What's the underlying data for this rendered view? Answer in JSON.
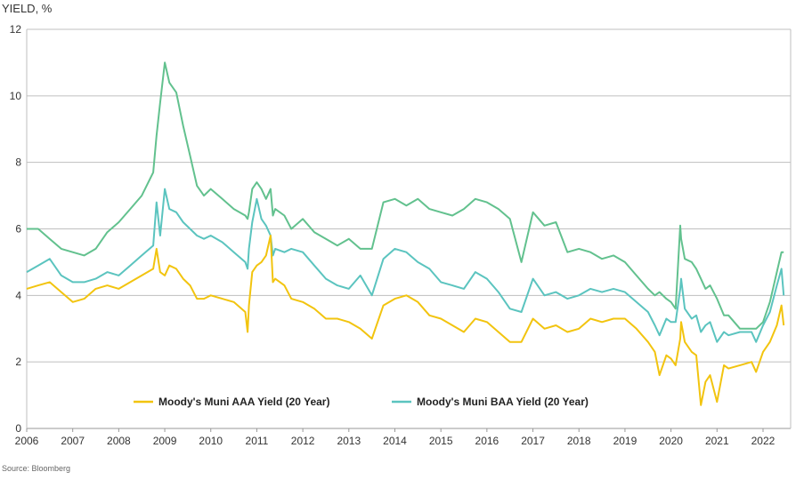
{
  "chart_data": {
    "type": "line",
    "ylabel": "YIELD, %",
    "ylim": [
      0,
      12
    ],
    "yticks": [
      "0",
      "2",
      "4",
      "6",
      "8",
      "10",
      "12"
    ],
    "xlim": [
      2006,
      2022.6
    ],
    "xticks": [
      "2006",
      "2007",
      "2008",
      "2009",
      "2010",
      "2011",
      "2012",
      "2013",
      "2014",
      "2015",
      "2016",
      "2017",
      "2018",
      "2019",
      "2020",
      "2021",
      "2022"
    ],
    "grid": "horizontal",
    "legend_position": "bottom-center",
    "source": "Source: Bloomberg",
    "series": [
      {
        "name": "Moody's Muni AAA Yield (20 Year)",
        "color": "#F2C40F",
        "x": [
          2006.0,
          2006.25,
          2006.5,
          2006.75,
          2007.0,
          2007.25,
          2007.5,
          2007.75,
          2008.0,
          2008.25,
          2008.5,
          2008.75,
          2008.82,
          2008.9,
          2009.0,
          2009.1,
          2009.25,
          2009.4,
          2009.55,
          2009.7,
          2009.85,
          2010.0,
          2010.25,
          2010.5,
          2010.75,
          2010.8,
          2010.83,
          2010.9,
          2011.0,
          2011.1,
          2011.2,
          2011.3,
          2011.35,
          2011.4,
          2011.6,
          2011.75,
          2012.0,
          2012.25,
          2012.5,
          2012.75,
          2013.0,
          2013.25,
          2013.5,
          2013.75,
          2014.0,
          2014.25,
          2014.5,
          2014.75,
          2015.0,
          2015.25,
          2015.5,
          2015.75,
          2016.0,
          2016.25,
          2016.5,
          2016.75,
          2017.0,
          2017.25,
          2017.5,
          2017.75,
          2018.0,
          2018.25,
          2018.5,
          2018.75,
          2019.0,
          2019.25,
          2019.5,
          2019.65,
          2019.75,
          2019.9,
          2020.0,
          2020.1,
          2020.2,
          2020.22,
          2020.3,
          2020.45,
          2020.55,
          2020.65,
          2020.75,
          2020.85,
          2021.0,
          2021.15,
          2021.25,
          2021.5,
          2021.75,
          2021.85,
          2022.0,
          2022.15,
          2022.3,
          2022.4,
          2022.45
        ],
        "y": [
          4.2,
          4.3,
          4.4,
          4.1,
          3.8,
          3.9,
          4.2,
          4.3,
          4.2,
          4.4,
          4.6,
          4.8,
          5.4,
          4.7,
          4.6,
          4.9,
          4.8,
          4.5,
          4.3,
          3.9,
          3.9,
          4.0,
          3.9,
          3.8,
          3.5,
          2.9,
          3.7,
          4.7,
          4.9,
          5.0,
          5.2,
          5.8,
          4.4,
          4.5,
          4.3,
          3.9,
          3.8,
          3.6,
          3.3,
          3.3,
          3.2,
          3.0,
          2.7,
          3.7,
          3.9,
          4.0,
          3.8,
          3.4,
          3.3,
          3.1,
          2.9,
          3.3,
          3.2,
          2.9,
          2.6,
          2.6,
          3.3,
          3.0,
          3.1,
          2.9,
          3.0,
          3.3,
          3.2,
          3.3,
          3.3,
          3.0,
          2.6,
          2.3,
          1.6,
          2.2,
          2.1,
          1.9,
          2.7,
          3.2,
          2.6,
          2.3,
          2.2,
          0.7,
          1.4,
          1.6,
          0.8,
          1.9,
          1.8,
          1.9,
          2.0,
          1.7,
          2.3,
          2.6,
          3.1,
          3.7,
          3.1
        ]
      },
      {
        "name": "Moody's Muni BAA Yield (20 Year)",
        "color": "#5BC4BF",
        "x": [
          2006.0,
          2006.25,
          2006.5,
          2006.75,
          2007.0,
          2007.25,
          2007.5,
          2007.75,
          2008.0,
          2008.25,
          2008.5,
          2008.75,
          2008.82,
          2008.9,
          2009.0,
          2009.1,
          2009.25,
          2009.4,
          2009.55,
          2009.7,
          2009.85,
          2010.0,
          2010.25,
          2010.5,
          2010.75,
          2010.8,
          2010.83,
          2010.9,
          2011.0,
          2011.1,
          2011.2,
          2011.3,
          2011.35,
          2011.4,
          2011.6,
          2011.75,
          2012.0,
          2012.25,
          2012.5,
          2012.75,
          2013.0,
          2013.25,
          2013.5,
          2013.75,
          2014.0,
          2014.25,
          2014.5,
          2014.75,
          2015.0,
          2015.25,
          2015.5,
          2015.75,
          2016.0,
          2016.25,
          2016.5,
          2016.75,
          2017.0,
          2017.25,
          2017.5,
          2017.75,
          2018.0,
          2018.25,
          2018.5,
          2018.75,
          2019.0,
          2019.25,
          2019.5,
          2019.65,
          2019.75,
          2019.9,
          2020.0,
          2020.1,
          2020.2,
          2020.22,
          2020.3,
          2020.45,
          2020.55,
          2020.65,
          2020.75,
          2020.85,
          2021.0,
          2021.15,
          2021.25,
          2021.5,
          2021.75,
          2021.85,
          2022.0,
          2022.15,
          2022.3,
          2022.4,
          2022.45
        ],
        "y": [
          4.7,
          4.9,
          5.1,
          4.6,
          4.4,
          4.4,
          4.5,
          4.7,
          4.6,
          4.9,
          5.2,
          5.5,
          6.8,
          5.8,
          7.2,
          6.6,
          6.5,
          6.2,
          6.0,
          5.8,
          5.7,
          5.8,
          5.6,
          5.3,
          5.0,
          4.8,
          5.4,
          6.2,
          6.9,
          6.3,
          6.1,
          5.8,
          5.2,
          5.4,
          5.3,
          5.4,
          5.3,
          4.9,
          4.5,
          4.3,
          4.2,
          4.6,
          4.0,
          5.1,
          5.4,
          5.3,
          5.0,
          4.8,
          4.4,
          4.3,
          4.2,
          4.7,
          4.5,
          4.1,
          3.6,
          3.5,
          4.5,
          4.0,
          4.1,
          3.9,
          4.0,
          4.2,
          4.1,
          4.2,
          4.1,
          3.8,
          3.5,
          3.1,
          2.8,
          3.3,
          3.2,
          3.2,
          4.2,
          4.5,
          3.6,
          3.3,
          3.4,
          2.9,
          3.1,
          3.2,
          2.6,
          2.9,
          2.8,
          2.9,
          2.9,
          2.6,
          3.1,
          3.5,
          4.3,
          4.8,
          4.0
        ]
      },
      {
        "name": "",
        "color": "#62C18E",
        "x": [
          2006.0,
          2006.25,
          2006.5,
          2006.75,
          2007.0,
          2007.25,
          2007.5,
          2007.75,
          2008.0,
          2008.25,
          2008.5,
          2008.75,
          2008.82,
          2008.9,
          2009.0,
          2009.1,
          2009.25,
          2009.4,
          2009.55,
          2009.7,
          2009.85,
          2010.0,
          2010.25,
          2010.5,
          2010.75,
          2010.8,
          2010.83,
          2010.9,
          2011.0,
          2011.1,
          2011.2,
          2011.3,
          2011.35,
          2011.4,
          2011.6,
          2011.75,
          2012.0,
          2012.25,
          2012.5,
          2012.75,
          2013.0,
          2013.25,
          2013.5,
          2013.75,
          2014.0,
          2014.25,
          2014.5,
          2014.75,
          2015.0,
          2015.25,
          2015.5,
          2015.75,
          2016.0,
          2016.25,
          2016.5,
          2016.75,
          2017.0,
          2017.25,
          2017.5,
          2017.75,
          2018.0,
          2018.25,
          2018.5,
          2018.75,
          2019.0,
          2019.25,
          2019.5,
          2019.65,
          2019.75,
          2019.9,
          2020.0,
          2020.1,
          2020.2,
          2020.22,
          2020.3,
          2020.45,
          2020.55,
          2020.65,
          2020.75,
          2020.85,
          2021.0,
          2021.15,
          2021.25,
          2021.5,
          2021.75,
          2021.85,
          2022.0,
          2022.15,
          2022.3,
          2022.4,
          2022.45
        ],
        "y": [
          6.0,
          6.0,
          5.7,
          5.4,
          5.3,
          5.2,
          5.4,
          5.9,
          6.2,
          6.6,
          7.0,
          7.7,
          8.8,
          9.8,
          11.0,
          10.4,
          10.1,
          9.1,
          8.2,
          7.3,
          7.0,
          7.2,
          6.9,
          6.6,
          6.4,
          6.3,
          6.5,
          7.2,
          7.4,
          7.2,
          6.9,
          7.2,
          6.4,
          6.6,
          6.4,
          6.0,
          6.3,
          5.9,
          5.7,
          5.5,
          5.7,
          5.4,
          5.4,
          6.8,
          6.9,
          6.7,
          6.9,
          6.6,
          6.5,
          6.4,
          6.6,
          6.9,
          6.8,
          6.6,
          6.3,
          5.0,
          6.5,
          6.1,
          6.2,
          5.3,
          5.4,
          5.3,
          5.1,
          5.2,
          5.0,
          4.6,
          4.2,
          4.0,
          4.1,
          3.9,
          3.8,
          3.6,
          6.1,
          5.7,
          5.1,
          5.0,
          4.8,
          4.5,
          4.2,
          4.3,
          3.9,
          3.4,
          3.4,
          3.0,
          3.0,
          3.0,
          3.2,
          3.8,
          4.7,
          5.3,
          5.3
        ]
      }
    ]
  }
}
